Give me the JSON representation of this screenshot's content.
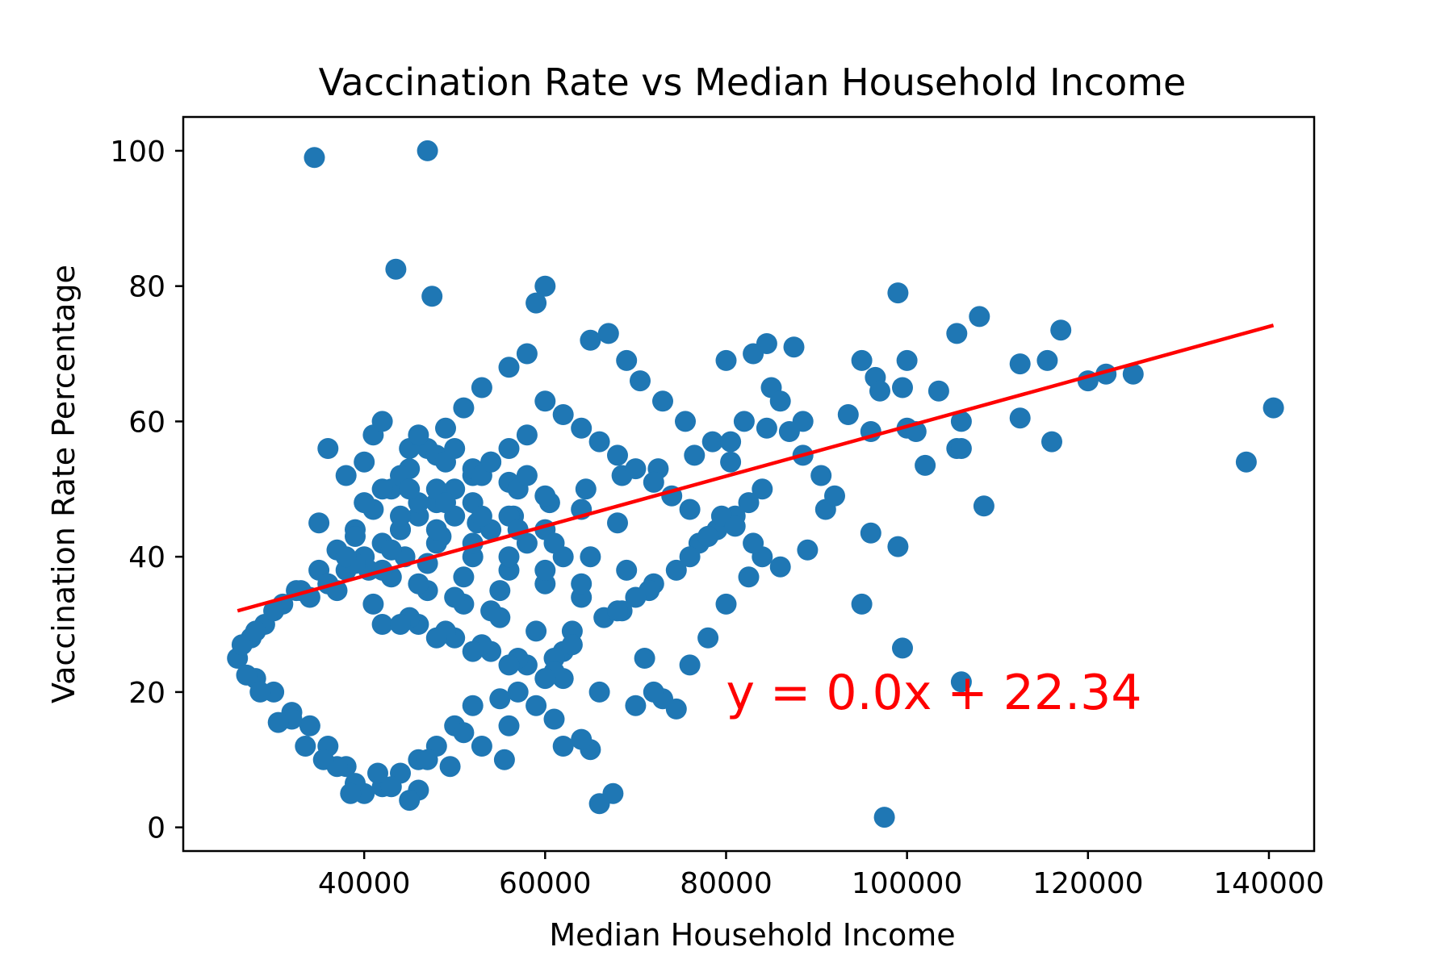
{
  "chart_data": {
    "type": "scatter",
    "title": "Vaccination Rate vs Median Household Income",
    "xlabel": "Median Household Income",
    "ylabel": "Vaccination Rate Percentage",
    "xlim": [
      20000,
      145000
    ],
    "ylim": [
      -3.5,
      105
    ],
    "x_ticks": [
      40000,
      60000,
      80000,
      100000,
      120000,
      140000
    ],
    "y_ticks": [
      0,
      20,
      40,
      60,
      80,
      100
    ],
    "grid": false,
    "colors": {
      "points": "#1f77b4",
      "regression": "#ff0000",
      "axes": "#000000"
    },
    "regression": {
      "x": [
        26000,
        140500
      ],
      "y": [
        32.0,
        74.2
      ],
      "equation_label": "y = 0.0x + 22.34",
      "label_position": [
        80000,
        17.5
      ]
    },
    "series": [
      {
        "x": [
          34500,
          47000,
          43500,
          47500,
          60000,
          59000,
          99000,
          108000,
          105500,
          117000,
          112500,
          115500,
          122000,
          125000,
          120000,
          140500,
          137500,
          116000,
          112500,
          106000,
          108500,
          106000,
          102000,
          105500,
          100000,
          99500,
          100000,
          103500,
          101000,
          95000,
          96500,
          97000,
          96000,
          93500,
          91000,
          96000,
          99000,
          95000,
          99500,
          106000,
          97500,
          87500,
          84500,
          85000,
          82000,
          80000,
          83000,
          86000,
          88500,
          87000,
          84000,
          82500,
          81000,
          79000,
          78000,
          77000,
          76000,
          74500,
          72000,
          71500,
          70000,
          68500,
          66500,
          63000,
          62000,
          61000,
          57000,
          55000,
          52000,
          50000,
          48000,
          46000,
          44000,
          42000,
          40000,
          38000,
          36000,
          34000,
          32000,
          30000,
          28000,
          26000,
          27500,
          29000,
          31000,
          33000,
          35000,
          37000,
          39000,
          41000,
          43000,
          45000,
          47000,
          49000,
          51000,
          53000,
          56000,
          58000,
          65000,
          67000,
          69000,
          70500,
          73000,
          75500,
          78500,
          80500,
          79500,
          82500,
          80000,
          78000,
          76000,
          73000,
          74500,
          72000,
          71000,
          67500,
          66000,
          65000,
          64000,
          62000,
          61000,
          59000,
          56000,
          55500,
          53000,
          51000,
          49500,
          47000,
          46000,
          45000,
          43000,
          41500,
          39000,
          38500,
          37000,
          35500,
          33500,
          32000,
          30500,
          28500,
          27000,
          26500,
          28000,
          30000,
          32500,
          36000,
          40500,
          44500,
          48500,
          52500,
          56500,
          60500,
          64500,
          68500,
          72500,
          76500,
          80500,
          84500,
          88500,
          90500,
          92000,
          89000,
          86000,
          84000,
          83000,
          81000,
          78000,
          76000,
          74000,
          72000,
          70000,
          68000,
          66000,
          64000,
          62000,
          60000,
          58000,
          56000,
          54000,
          52000,
          50000,
          48000,
          46000,
          44000,
          42000,
          40000,
          38000,
          36000,
          34000,
          42000,
          46000,
          50000,
          54000,
          58000,
          62000,
          66000,
          70000,
          44000,
          48000,
          52000,
          56000,
          60000,
          64000,
          68000,
          40000,
          44000,
          48000,
          52000,
          56000,
          60000,
          64000,
          38000,
          42000,
          46000,
          50000,
          54000,
          58000,
          62000,
          36000,
          40000,
          44000,
          48000,
          52000,
          56000,
          60000,
          37000,
          41000,
          45000,
          49000,
          53000,
          57000,
          61000,
          39000,
          43000,
          47000,
          51000,
          55000,
          59000,
          63000,
          35000,
          39000,
          43000,
          47000,
          51000,
          55000,
          45000,
          49000,
          53000,
          57000,
          61000,
          65000,
          69000,
          48000,
          52000,
          56000,
          60000,
          64000,
          68000,
          41000,
          45000,
          49000,
          53000,
          57000,
          42000,
          46000,
          50000,
          54000,
          58000,
          44000,
          48000,
          52000,
          56000,
          60000,
          38000,
          42000,
          46000,
          50000,
          54000
        ],
        "y": [
          99,
          100,
          82.5,
          78.5,
          80,
          77.5,
          79,
          75.5,
          73,
          73.5,
          68.5,
          69,
          67,
          67,
          66,
          62,
          54,
          57,
          60.5,
          60,
          47.5,
          21.5,
          53.5,
          56,
          69,
          65,
          59,
          64.5,
          58.5,
          69,
          66.5,
          64.5,
          58.5,
          61,
          47,
          43.5,
          41.5,
          33,
          26.5,
          56,
          1.5,
          71,
          71.5,
          65,
          60,
          69,
          70,
          63,
          60,
          58.5,
          50,
          48,
          46,
          44,
          43,
          42,
          40,
          38,
          36,
          35,
          34,
          32,
          31,
          29,
          26,
          25,
          20,
          19,
          18,
          15,
          12,
          10,
          8,
          6,
          5,
          9,
          12,
          15,
          17,
          20,
          22,
          25,
          28,
          30,
          33,
          35,
          38,
          41,
          44,
          47,
          50,
          53,
          56,
          59,
          62,
          65,
          68,
          70,
          72,
          73,
          69,
          66,
          63,
          60,
          57,
          54,
          46,
          37,
          33,
          28,
          24,
          19,
          17.5,
          20,
          25,
          5,
          3.5,
          11.5,
          13,
          12,
          16,
          18,
          15,
          10,
          12,
          14,
          9,
          10,
          5.5,
          4,
          6,
          8,
          6.5,
          5,
          9,
          10,
          12,
          16,
          15.5,
          20,
          22.5,
          27,
          29,
          32,
          35,
          36,
          38,
          40,
          43,
          45,
          46,
          48,
          50,
          52,
          53,
          55,
          57,
          59,
          55,
          52,
          49,
          41,
          38.5,
          40,
          42,
          44.5,
          43,
          47,
          49,
          51,
          53,
          55,
          57,
          59,
          61,
          63,
          58,
          56,
          54,
          52,
          50,
          48,
          46,
          44,
          42,
          40,
          38,
          36,
          34,
          30,
          30,
          28,
          26,
          24,
          22,
          20,
          18,
          44,
          42,
          40,
          38,
          36,
          34,
          32,
          48,
          46,
          44,
          42,
          40,
          38,
          36,
          52,
          50,
          48,
          46,
          44,
          42,
          40,
          56,
          54,
          52,
          50,
          48,
          46,
          44,
          35,
          33,
          31,
          29,
          27,
          25,
          23,
          39,
          37,
          35,
          33,
          31,
          29,
          27,
          45,
          43,
          41,
          39,
          37,
          35,
          50,
          48,
          46,
          44,
          42,
          40,
          38,
          55,
          53,
          51,
          49,
          47,
          45,
          58,
          56,
          54,
          52,
          50,
          60,
          58,
          56,
          54,
          52,
          30,
          28,
          26,
          24,
          22,
          40,
          38,
          36,
          34,
          32
        ]
      }
    ]
  }
}
